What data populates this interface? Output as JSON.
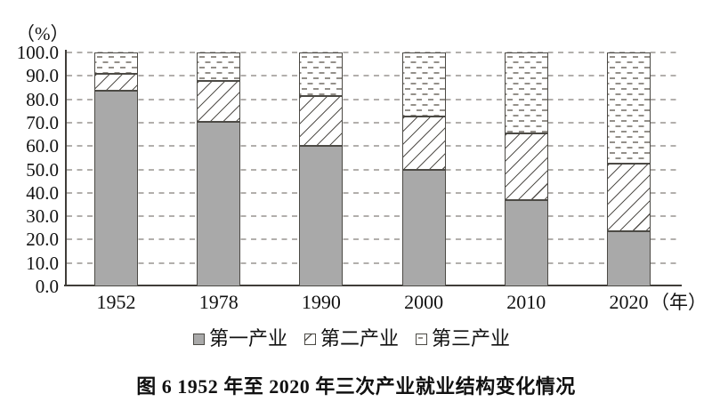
{
  "caption": "图 6  1952 年至 2020 年三次产业就业结构变化情况",
  "chart_data": {
    "type": "bar",
    "stacked": true,
    "title": "图 6  1952 年至 2020 年三次产业就业结构变化情况",
    "unit_label": "（%）",
    "x_axis_suffix": "（年）",
    "categories": [
      "1952",
      "1978",
      "1990",
      "2000",
      "2010",
      "2020"
    ],
    "series": [
      {
        "name": "第一产业",
        "pattern": "solid",
        "values": [
          83.5,
          70.5,
          60.1,
          50.0,
          36.7,
          23.6
        ]
      },
      {
        "name": "第二产业",
        "pattern": "hatch",
        "values": [
          7.4,
          17.3,
          21.4,
          22.5,
          28.7,
          28.7
        ]
      },
      {
        "name": "第三产业",
        "pattern": "dots",
        "values": [
          9.1,
          12.2,
          18.5,
          27.5,
          34.6,
          47.7
        ]
      }
    ],
    "ylim": [
      0,
      100
    ],
    "ytick_step": 10,
    "ytick_labels": [
      "0.0",
      "10.0",
      "20.0",
      "30.0",
      "40.0",
      "50.0",
      "60.0",
      "70.0",
      "80.0",
      "90.0",
      "100.0"
    ],
    "grid": "dashed-horizontal",
    "legend_position": "bottom",
    "colors": {
      "primary_fill": "#a9a9a9",
      "segment_border": "#4c4a45",
      "hatch_line": "#55524d",
      "dot_dash": "#94908a",
      "gridline": "#b2afac",
      "axis": "#403d39",
      "text": "#111111"
    }
  }
}
